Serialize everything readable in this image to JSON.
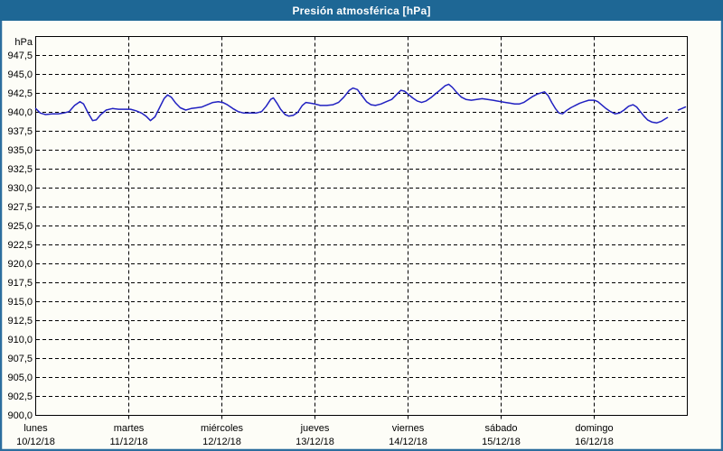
{
  "window": {
    "title": "Presión atmosférica [hPa]"
  },
  "colors": {
    "titlebar_bg": "#1e6795",
    "titlebar_text": "#ffffff",
    "window_border": "#2c6e9e",
    "background": "#fdfdf7",
    "plot_border": "#000000",
    "grid": "#000000",
    "line": "#2121c1",
    "label_text": "#000000"
  },
  "chart_data": {
    "type": "line",
    "title": "Presión atmosférica [hPa]",
    "unit_label": "hPa",
    "grid": "dashed",
    "legend": "none",
    "y_axis": {
      "min": 900,
      "max": 950,
      "tick_step": 2.5,
      "ticks": [
        {
          "value": 947.5,
          "label": "947,5"
        },
        {
          "value": 945.0,
          "label": "945,0"
        },
        {
          "value": 942.5,
          "label": "942,5"
        },
        {
          "value": 940.0,
          "label": "940,0"
        },
        {
          "value": 937.5,
          "label": "937,5"
        },
        {
          "value": 935.0,
          "label": "935,0"
        },
        {
          "value": 932.5,
          "label": "932,5"
        },
        {
          "value": 930.0,
          "label": "930,0"
        },
        {
          "value": 927.5,
          "label": "927,5"
        },
        {
          "value": 925.0,
          "label": "925,0"
        },
        {
          "value": 922.5,
          "label": "922,5"
        },
        {
          "value": 920.0,
          "label": "920,0"
        },
        {
          "value": 917.5,
          "label": "917,5"
        },
        {
          "value": 915.0,
          "label": "915,0"
        },
        {
          "value": 912.5,
          "label": "912,5"
        },
        {
          "value": 910.0,
          "label": "910,0"
        },
        {
          "value": 907.5,
          "label": "907,5"
        },
        {
          "value": 905.0,
          "label": "905,0"
        },
        {
          "value": 902.5,
          "label": "902,5"
        },
        {
          "value": 900.0,
          "label": "900,0"
        }
      ]
    },
    "x_axis": {
      "min_day": 0,
      "max_day": 7,
      "day_ticks": [
        {
          "name": "lunes",
          "date": "10/12/18"
        },
        {
          "name": "martes",
          "date": "11/12/18"
        },
        {
          "name": "miércoles",
          "date": "12/12/18"
        },
        {
          "name": "jueves",
          "date": "13/12/18"
        },
        {
          "name": "viernes",
          "date": "14/12/18"
        },
        {
          "name": "sábado",
          "date": "15/12/18"
        },
        {
          "name": "domingo",
          "date": "16/12/18"
        }
      ]
    },
    "series": [
      {
        "name": "Presión atmosférica",
        "unit": "hPa",
        "segments": [
          [
            [
              0,
              940.5
            ],
            [
              0.049,
              939.9
            ],
            [
              0.107,
              939.7
            ],
            [
              0.175,
              939.8
            ],
            [
              0.243,
              939.8
            ],
            [
              0.301,
              939.9
            ],
            [
              0.359,
              940.1
            ],
            [
              0.417,
              940.9
            ],
            [
              0.476,
              941.4
            ],
            [
              0.515,
              941.1
            ],
            [
              0.563,
              939.9
            ],
            [
              0.612,
              938.9
            ],
            [
              0.65,
              939.0
            ],
            [
              0.699,
              939.7
            ],
            [
              0.757,
              940.3
            ],
            [
              0.825,
              940.5
            ],
            [
              0.893,
              940.4
            ],
            [
              0.961,
              940.4
            ],
            [
              1.019,
              940.4
            ],
            [
              1.078,
              940.2
            ],
            [
              1.136,
              939.9
            ],
            [
              1.184,
              939.5
            ],
            [
              1.233,
              938.9
            ],
            [
              1.282,
              939.4
            ],
            [
              1.33,
              940.6
            ],
            [
              1.379,
              941.8
            ],
            [
              1.417,
              942.3
            ],
            [
              1.456,
              942.0
            ],
            [
              1.505,
              941.2
            ],
            [
              1.553,
              940.6
            ],
            [
              1.612,
              940.3
            ],
            [
              1.67,
              940.5
            ],
            [
              1.728,
              940.6
            ],
            [
              1.786,
              940.7
            ],
            [
              1.845,
              941.0
            ],
            [
              1.903,
              941.3
            ],
            [
              1.961,
              941.4
            ],
            [
              2.01,
              941.3
            ],
            [
              2.058,
              941.0
            ],
            [
              2.117,
              940.5
            ],
            [
              2.175,
              940.1
            ],
            [
              2.233,
              939.9
            ],
            [
              2.301,
              939.9
            ],
            [
              2.369,
              939.9
            ],
            [
              2.427,
              940.1
            ],
            [
              2.476,
              940.8
            ],
            [
              2.524,
              941.7
            ],
            [
              2.553,
              941.9
            ],
            [
              2.592,
              941.2
            ],
            [
              2.631,
              940.4
            ],
            [
              2.68,
              939.7
            ],
            [
              2.718,
              939.5
            ],
            [
              2.767,
              939.6
            ],
            [
              2.816,
              940.0
            ],
            [
              2.864,
              940.9
            ],
            [
              2.903,
              941.3
            ],
            [
              2.951,
              941.2
            ],
            [
              3.0,
              941.1
            ],
            [
              3.058,
              940.9
            ],
            [
              3.126,
              940.9
            ],
            [
              3.194,
              941.0
            ],
            [
              3.252,
              941.3
            ],
            [
              3.311,
              942.0
            ],
            [
              3.369,
              942.9
            ],
            [
              3.408,
              943.2
            ],
            [
              3.456,
              943.0
            ],
            [
              3.505,
              942.2
            ],
            [
              3.553,
              941.4
            ],
            [
              3.602,
              941.0
            ],
            [
              3.65,
              940.9
            ],
            [
              3.709,
              941.1
            ],
            [
              3.767,
              941.4
            ],
            [
              3.825,
              941.7
            ],
            [
              3.874,
              942.3
            ],
            [
              3.922,
              942.9
            ],
            [
              3.961,
              942.8
            ],
            [
              4.0,
              942.4
            ],
            [
              4.049,
              941.9
            ],
            [
              4.097,
              941.5
            ],
            [
              4.146,
              941.3
            ],
            [
              4.194,
              941.5
            ],
            [
              4.252,
              942.0
            ],
            [
              4.301,
              942.5
            ],
            [
              4.35,
              943.0
            ],
            [
              4.398,
              943.5
            ],
            [
              4.437,
              943.7
            ],
            [
              4.476,
              943.3
            ],
            [
              4.524,
              942.6
            ],
            [
              4.573,
              942.0
            ],
            [
              4.621,
              941.7
            ],
            [
              4.68,
              941.6
            ],
            [
              4.738,
              941.7
            ],
            [
              4.796,
              941.8
            ],
            [
              4.854,
              941.7
            ],
            [
              4.913,
              941.6
            ],
            [
              4.951,
              941.5
            ],
            [
              5.0,
              941.4
            ],
            [
              5.049,
              941.3
            ],
            [
              5.097,
              941.2
            ],
            [
              5.146,
              941.1
            ],
            [
              5.194,
              941.1
            ],
            [
              5.243,
              941.3
            ],
            [
              5.291,
              941.7
            ],
            [
              5.34,
              942.1
            ],
            [
              5.388,
              942.4
            ],
            [
              5.437,
              942.6
            ],
            [
              5.466,
              942.7
            ],
            [
              5.505,
              942.2
            ],
            [
              5.544,
              941.3
            ],
            [
              5.583,
              940.5
            ],
            [
              5.621,
              939.9
            ],
            [
              5.66,
              939.8
            ],
            [
              5.699,
              940.2
            ],
            [
              5.748,
              940.6
            ],
            [
              5.796,
              940.9
            ],
            [
              5.845,
              941.2
            ],
            [
              5.893,
              941.4
            ],
            [
              5.942,
              941.6
            ],
            [
              6.0,
              941.6
            ],
            [
              6.039,
              941.4
            ],
            [
              6.078,
              941.0
            ],
            [
              6.126,
              940.5
            ],
            [
              6.175,
              940.1
            ],
            [
              6.223,
              939.8
            ],
            [
              6.272,
              939.9
            ],
            [
              6.32,
              940.3
            ],
            [
              6.369,
              940.8
            ],
            [
              6.417,
              941.0
            ],
            [
              6.456,
              940.7
            ],
            [
              6.495,
              940.1
            ],
            [
              6.534,
              939.5
            ],
            [
              6.573,
              939.0
            ],
            [
              6.621,
              938.7
            ],
            [
              6.67,
              938.6
            ],
            [
              6.718,
              938.8
            ],
            [
              6.757,
              939.1
            ],
            [
              6.786,
              939.3
            ]
          ],
          [
            [
              6.903,
              940.3
            ],
            [
              6.942,
              940.5
            ],
            [
              6.981,
              940.7
            ]
          ]
        ]
      }
    ]
  }
}
